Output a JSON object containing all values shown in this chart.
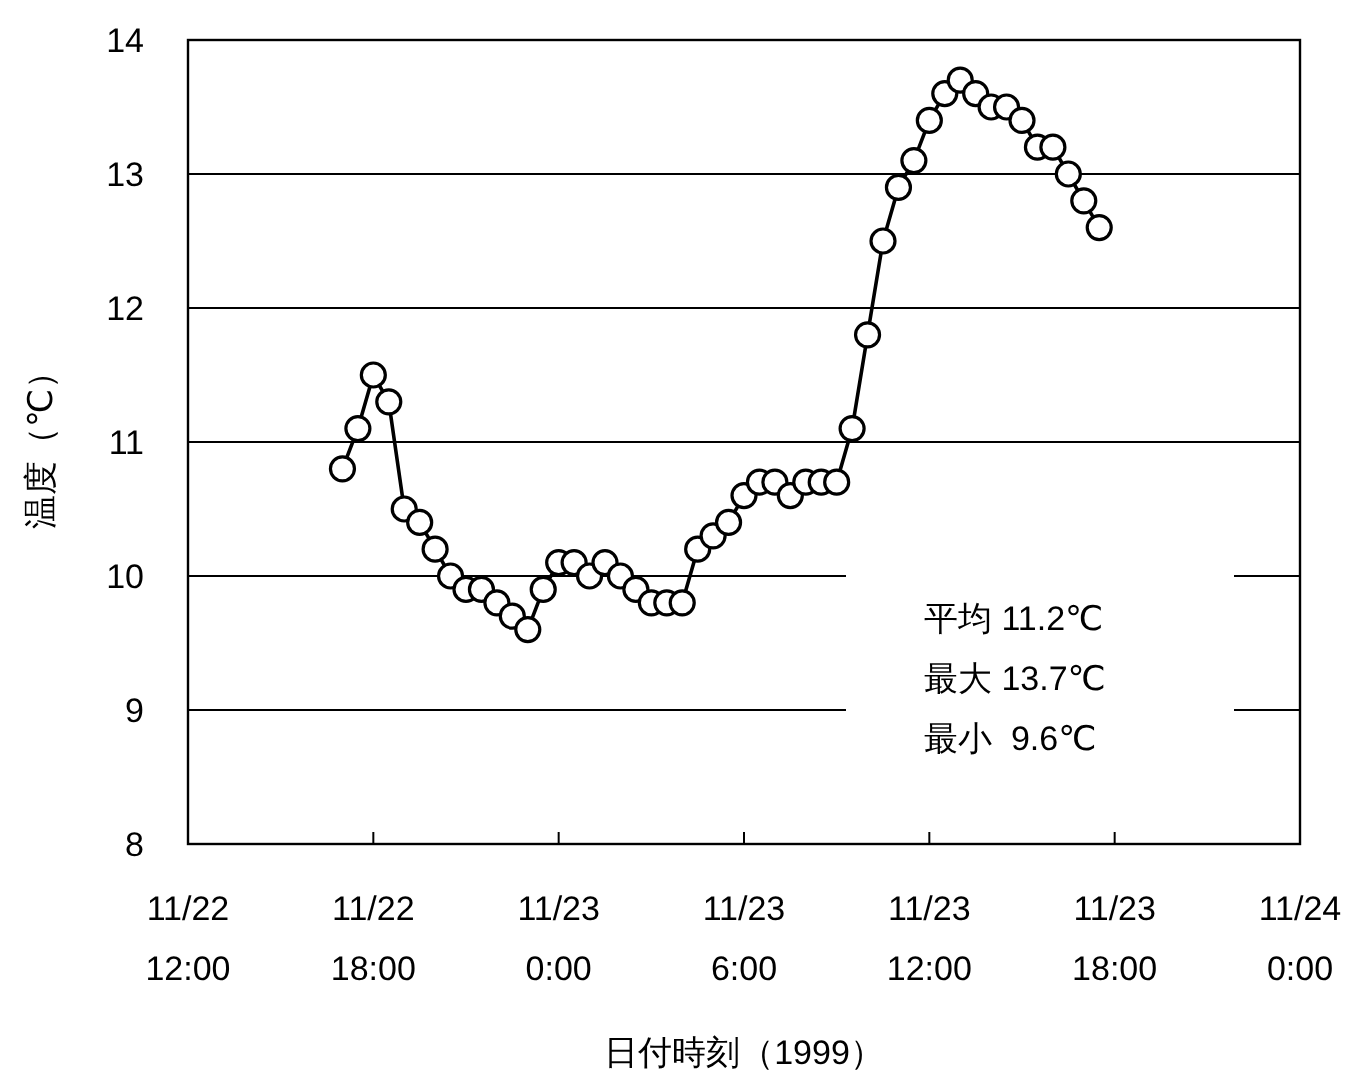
{
  "chart_data": {
    "type": "line",
    "xlabel": "日付時刻（1999）",
    "ylabel": "温度（℃）",
    "x": [
      "1999-11-22T17:00",
      "1999-11-22T17:30",
      "1999-11-22T18:00",
      "1999-11-22T18:30",
      "1999-11-22T19:00",
      "1999-11-22T19:30",
      "1999-11-22T20:00",
      "1999-11-22T20:30",
      "1999-11-22T21:00",
      "1999-11-22T21:30",
      "1999-11-22T22:00",
      "1999-11-22T22:30",
      "1999-11-22T23:00",
      "1999-11-22T23:30",
      "1999-11-23T00:00",
      "1999-11-23T00:30",
      "1999-11-23T01:00",
      "1999-11-23T01:30",
      "1999-11-23T02:00",
      "1999-11-23T02:30",
      "1999-11-23T03:00",
      "1999-11-23T03:30",
      "1999-11-23T04:00",
      "1999-11-23T04:30",
      "1999-11-23T05:00",
      "1999-11-23T05:30",
      "1999-11-23T06:00",
      "1999-11-23T06:30",
      "1999-11-23T07:00",
      "1999-11-23T07:30",
      "1999-11-23T08:00",
      "1999-11-23T08:30",
      "1999-11-23T09:00",
      "1999-11-23T09:30",
      "1999-11-23T10:00",
      "1999-11-23T10:30",
      "1999-11-23T11:00",
      "1999-11-23T11:30",
      "1999-11-23T12:00",
      "1999-11-23T12:30",
      "1999-11-23T13:00",
      "1999-11-23T13:30",
      "1999-11-23T14:00",
      "1999-11-23T14:30",
      "1999-11-23T15:00",
      "1999-11-23T15:30",
      "1999-11-23T16:00",
      "1999-11-23T16:30",
      "1999-11-23T17:00",
      "1999-11-23T17:30"
    ],
    "series": [
      {
        "color": "#000000",
        "values": [
          10.8,
          11.1,
          11.5,
          11.3,
          10.5,
          10.4,
          10.2,
          10.0,
          9.9,
          9.9,
          9.8,
          9.7,
          9.6,
          9.9,
          10.1,
          10.1,
          10.0,
          10.1,
          10.0,
          9.9,
          9.8,
          9.8,
          9.8,
          10.2,
          10.3,
          10.4,
          10.6,
          10.7,
          10.7,
          10.6,
          10.7,
          10.7,
          10.7,
          11.1,
          11.8,
          12.5,
          12.9,
          13.1,
          13.4,
          13.6,
          13.7,
          13.6,
          13.5,
          13.5,
          13.4,
          13.2,
          13.2,
          13.0,
          12.8,
          12.6
        ]
      }
    ],
    "xlim": [
      "1999-11-22T12:00",
      "1999-11-24T00:00"
    ],
    "xticks": [
      {
        "value": "1999-11-22T12:00",
        "label": "11/22 12:00"
      },
      {
        "value": "1999-11-22T18:00",
        "label": "11/22 18:00"
      },
      {
        "value": "1999-11-23T00:00",
        "label": "11/23 0:00"
      },
      {
        "value": "1999-11-23T06:00",
        "label": "11/23 6:00"
      },
      {
        "value": "1999-11-23T12:00",
        "label": "11/23 12:00"
      },
      {
        "value": "1999-11-23T18:00",
        "label": "11/23 18:00"
      },
      {
        "value": "1999-11-24T00:00",
        "label": "11/24 0:00"
      }
    ],
    "ylim": [
      8,
      14
    ],
    "yticks": [
      8,
      9,
      10,
      11,
      12,
      13,
      14
    ],
    "grid": "y",
    "marker": "circle",
    "line_style": "solid",
    "annotations": [
      "平均 11.2℃",
      "最大 13.7℃",
      "最小  9.6℃"
    ]
  }
}
